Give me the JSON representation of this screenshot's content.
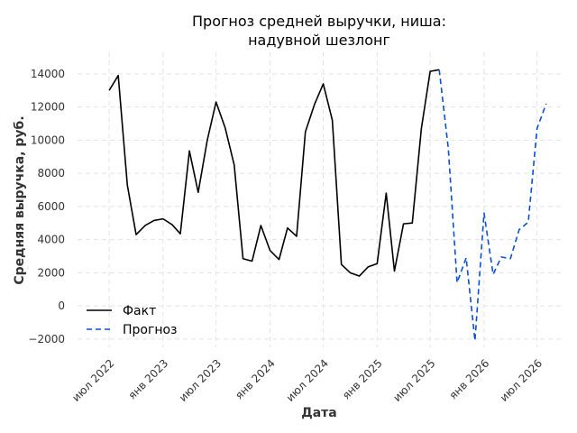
{
  "chart_data": {
    "type": "line",
    "title_lines": [
      "Прогноз средней выручки, ниша:",
      "надувной шезлонг"
    ],
    "xlabel": "Дата",
    "ylabel": "Средняя выручка, руб.",
    "grid": true,
    "legend_position": "lower-left",
    "xlim": [
      "2022-03-15",
      "2026-09-20"
    ],
    "ylim": [
      -2500,
      15300
    ],
    "y_ticks": [
      -2000,
      0,
      2000,
      4000,
      6000,
      8000,
      10000,
      12000,
      14000
    ],
    "y_tick_labels": [
      "−2000",
      "0",
      "2000",
      "4000",
      "6000",
      "8000",
      "10000",
      "12000",
      "14000"
    ],
    "x_ticks": [
      {
        "date": "2022-07-01",
        "label": "июл 2022"
      },
      {
        "date": "2023-01-01",
        "label": "янв 2023"
      },
      {
        "date": "2023-07-01",
        "label": "июл 2023"
      },
      {
        "date": "2024-01-01",
        "label": "янв 2024"
      },
      {
        "date": "2024-07-01",
        "label": "июл 2024"
      },
      {
        "date": "2025-01-01",
        "label": "янв 2025"
      },
      {
        "date": "2025-07-01",
        "label": "июл 2025"
      },
      {
        "date": "2026-01-01",
        "label": "янв 2026"
      },
      {
        "date": "2026-07-01",
        "label": "июл 2026"
      }
    ],
    "series": [
      {
        "name": "Факт",
        "color": "#000000",
        "style": "solid",
        "x": [
          "2022-07-01",
          "2022-08-01",
          "2022-09-01",
          "2022-10-01",
          "2022-11-01",
          "2022-12-01",
          "2023-01-01",
          "2023-02-01",
          "2023-03-01",
          "2023-04-01",
          "2023-05-01",
          "2023-06-01",
          "2023-07-01",
          "2023-08-01",
          "2023-09-01",
          "2023-10-01",
          "2023-11-01",
          "2023-12-01",
          "2024-01-01",
          "2024-02-01",
          "2024-03-01",
          "2024-04-01",
          "2024-05-01",
          "2024-06-01",
          "2024-07-01",
          "2024-08-01",
          "2024-09-01",
          "2024-10-01",
          "2024-11-01",
          "2024-12-01",
          "2025-01-01",
          "2025-02-01",
          "2025-03-01",
          "2025-04-01",
          "2025-05-01",
          "2025-06-01",
          "2025-07-01",
          "2025-08-01"
        ],
        "values": [
          13000,
          13900,
          7300,
          4300,
          4850,
          5150,
          5250,
          4900,
          4350,
          9350,
          6850,
          10000,
          12300,
          10750,
          8500,
          2850,
          2700,
          4850,
          3350,
          2800,
          4700,
          4200,
          10500,
          12150,
          13400,
          11200,
          2500,
          2000,
          1800,
          2350,
          2550,
          6800,
          2100,
          4950,
          5000,
          10700,
          14150,
          14250
        ]
      },
      {
        "name": "Прогноз",
        "color": "#0b4fd1",
        "style": "dashed",
        "x": [
          "2025-08-01",
          "2025-09-01",
          "2025-10-01",
          "2025-11-01",
          "2025-12-01",
          "2026-01-01",
          "2026-02-01",
          "2026-03-01",
          "2026-04-01",
          "2026-05-01",
          "2026-06-01",
          "2026-07-01",
          "2026-08-01"
        ],
        "values": [
          14250,
          9500,
          1400,
          2900,
          -2100,
          5600,
          1900,
          2950,
          2850,
          4600,
          5050,
          10700,
          12200
        ]
      }
    ]
  }
}
